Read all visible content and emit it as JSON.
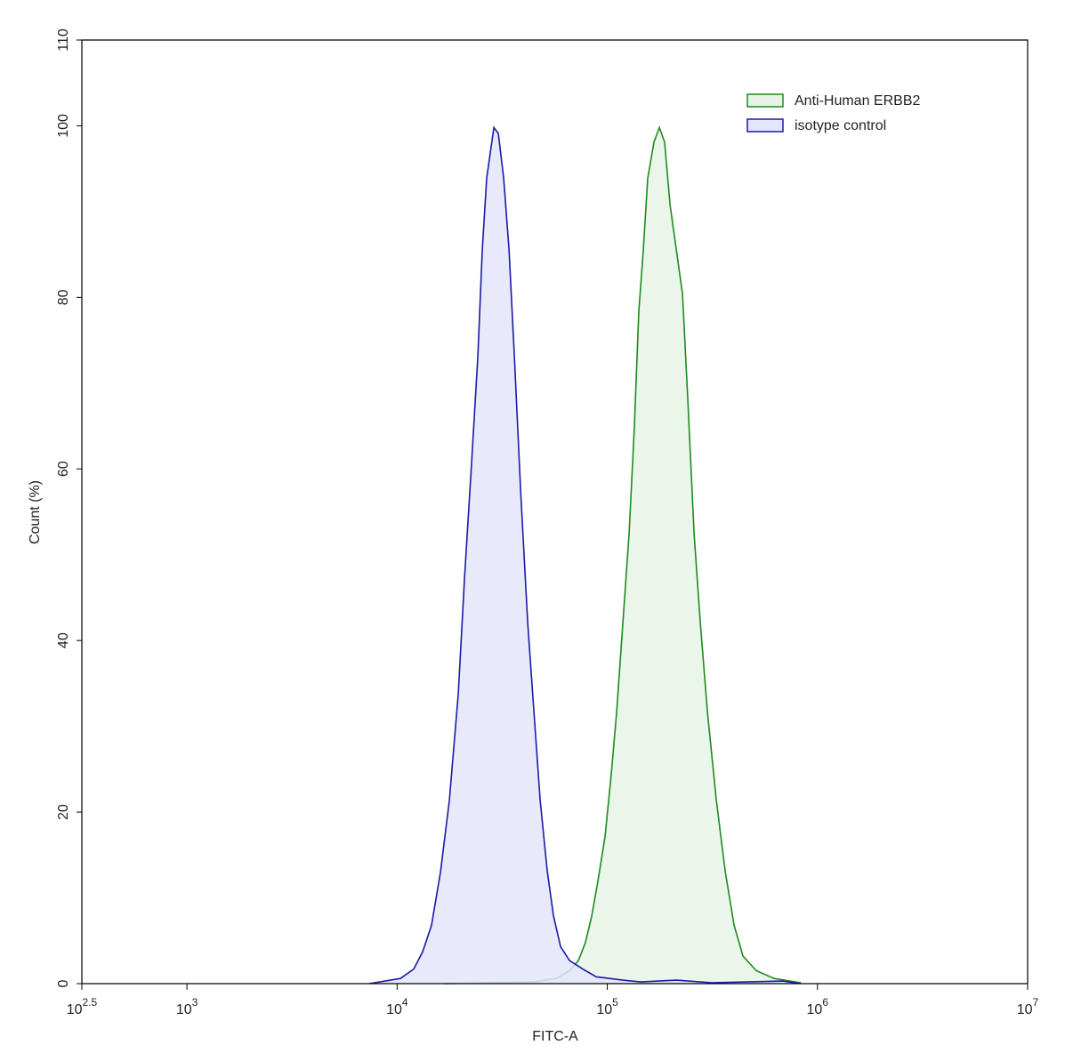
{
  "chart_data": {
    "type": "histogram-overlay",
    "x_label": "FITC-A",
    "y_label": "Count  (%)",
    "xscale": "log",
    "xlim": [
      316.23,
      10000000
    ],
    "ylim": [
      0,
      110
    ],
    "xticks": [
      {
        "value": 316.23,
        "label": {
          "base": "10",
          "exponent": "2.5"
        }
      },
      {
        "value": 1000,
        "label": {
          "base": "10",
          "exponent": "3"
        }
      },
      {
        "value": 10000,
        "label": {
          "base": "10",
          "exponent": "4"
        }
      },
      {
        "value": 100000,
        "label": {
          "base": "10",
          "exponent": "5"
        }
      },
      {
        "value": 1000000,
        "label": {
          "base": "10",
          "exponent": "6"
        }
      },
      {
        "value": 10000000,
        "label": {
          "base": "10",
          "exponent": "7"
        }
      }
    ],
    "yticks": [
      0,
      20,
      40,
      60,
      80,
      100,
      110
    ],
    "legend": "upper right",
    "series": [
      {
        "name": "Anti-Human ERBB2",
        "color": "#1f8a1f",
        "fill": "#e6f4e6",
        "x": [
          16880,
          44750,
          57140,
          66100,
          72850,
          78750,
          84370,
          90280,
          97590,
          104500,
          110800,
          118600,
          127000,
          134600,
          141300,
          148400,
          155800,
          166800,
          176900,
          187500,
          198900,
          212900,
          228000,
          241700,
          258800,
          277000,
          299500,
          330100,
          363900,
          401200,
          442300,
          512000,
          622100,
          833400
        ],
        "values": [
          0,
          0.2,
          0.6,
          1.5,
          2.7,
          4.8,
          7.9,
          12,
          17.2,
          24.5,
          31.7,
          42.1,
          52.5,
          64.9,
          78.4,
          85.6,
          93.9,
          98.1,
          99.8,
          98.1,
          90.8,
          85.6,
          80.4,
          68,
          52.5,
          42.1,
          31.7,
          21.4,
          13.1,
          6.8,
          3.2,
          1.5,
          0.6,
          0.1
        ]
      },
      {
        "name": "isotype control",
        "color": "#1a1aa6",
        "fill": "#e4e6fa",
        "x": [
          7370,
          10370,
          12000,
          13230,
          14580,
          16080,
          17730,
          19540,
          20920,
          22620,
          24220,
          25430,
          26690,
          28860,
          30300,
          32130,
          34060,
          36110,
          38660,
          41800,
          44750,
          47920,
          51820,
          55480,
          59980,
          66100,
          76450,
          88540,
          102500,
          118600,
          144200,
          212900,
          314300,
          685800,
          833400
        ],
        "values": [
          0,
          0.6,
          1.7,
          3.7,
          6.8,
          13,
          21.4,
          33.8,
          47.3,
          60.8,
          73.2,
          85.6,
          93.9,
          99.8,
          99.1,
          93.9,
          85.6,
          73.2,
          57.6,
          42.1,
          31.7,
          21.4,
          13.1,
          7.9,
          4.3,
          2.7,
          1.7,
          0.8,
          0.6,
          0.4,
          0.2,
          0.4,
          0.1,
          0.3,
          0
        ]
      }
    ]
  }
}
